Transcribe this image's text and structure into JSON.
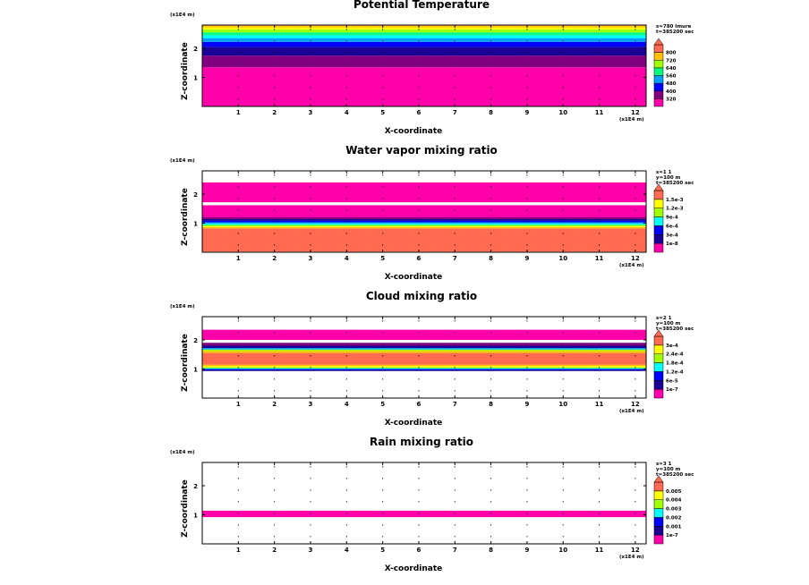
{
  "figure": {
    "xlabel": "X-coordinate",
    "ylabel": "Z-coordinate",
    "x_unit": "(x1E4 m)",
    "z_unit": "(x1E4 m)"
  },
  "colors": {
    "levels": [
      "#ff00aa",
      "#800080",
      "#1a0096",
      "#0000ff",
      "#00a0ff",
      "#00ffff",
      "#00ff80",
      "#a0ff00",
      "#ffff00",
      "#ffc000",
      "#ff6a50",
      "#ffffff"
    ]
  },
  "chart_data": [
    {
      "type": "heatmap",
      "title": "Potential Temperature",
      "info": [
        "s=780 Imure",
        "t=385200 sec"
      ],
      "xlim": [
        0,
        12.3
      ],
      "ylim": [
        0,
        2.8
      ],
      "xticks": [
        "1",
        "2",
        "3",
        "4",
        "5",
        "6",
        "7",
        "8",
        "9",
        "10",
        "11",
        "12"
      ],
      "yticks": [
        "1",
        "2"
      ],
      "colorbar_labels": [
        "320",
        "400",
        "480",
        "560",
        "640",
        "720",
        "800"
      ],
      "bands": [
        {
          "z0": 0.0,
          "z1": 1.35,
          "color": "#ff00aa"
        },
        {
          "z0": 1.35,
          "z1": 1.75,
          "color": "#800080"
        },
        {
          "z0": 1.75,
          "z1": 2.05,
          "color": "#1a0096"
        },
        {
          "z0": 2.05,
          "z1": 2.22,
          "color": "#0000ff"
        },
        {
          "z0": 2.22,
          "z1": 2.35,
          "color": "#00a0ff"
        },
        {
          "z0": 2.35,
          "z1": 2.45,
          "color": "#00ffff"
        },
        {
          "z0": 2.45,
          "z1": 2.55,
          "color": "#00ff80"
        },
        {
          "z0": 2.55,
          "z1": 2.65,
          "color": "#a0ff00"
        },
        {
          "z0": 2.65,
          "z1": 2.72,
          "color": "#ffff00"
        },
        {
          "z0": 2.72,
          "z1": 2.78,
          "color": "#ffc000"
        },
        {
          "z0": 2.78,
          "z1": 2.8,
          "color": "#ff6a50"
        }
      ]
    },
    {
      "type": "heatmap",
      "title": "Water vapor mixing ratio",
      "info": [
        "s=1 1",
        "y=100 m",
        "t=385200 sec"
      ],
      "xlim": [
        0,
        12.3
      ],
      "ylim": [
        0,
        2.8
      ],
      "xticks": [
        "1",
        "2",
        "3",
        "4",
        "5",
        "6",
        "7",
        "8",
        "9",
        "10",
        "11",
        "12"
      ],
      "yticks": [
        "1",
        "2"
      ],
      "colorbar_labels": [
        "1e-8",
        "3e-4",
        "6e-4",
        "9e-4",
        "1.2e-3",
        "1.5e-3"
      ],
      "bands": [
        {
          "z0": 0.0,
          "z1": 0.02,
          "color": "#ffffff"
        },
        {
          "z0": 0.02,
          "z1": 0.82,
          "color": "#ff6a50"
        },
        {
          "z0": 0.82,
          "z1": 0.87,
          "color": "#ffc000"
        },
        {
          "z0": 0.87,
          "z1": 0.9,
          "color": "#ffff00"
        },
        {
          "z0": 0.9,
          "z1": 0.93,
          "color": "#a0ff00"
        },
        {
          "z0": 0.93,
          "z1": 0.96,
          "color": "#00ff80"
        },
        {
          "z0": 0.96,
          "z1": 0.99,
          "color": "#00ffff"
        },
        {
          "z0": 0.99,
          "z1": 1.03,
          "color": "#00a0ff"
        },
        {
          "z0": 1.03,
          "z1": 1.08,
          "color": "#0000ff"
        },
        {
          "z0": 1.08,
          "z1": 1.14,
          "color": "#1a0096"
        },
        {
          "z0": 1.14,
          "z1": 1.2,
          "color": "#800080"
        },
        {
          "z0": 1.2,
          "z1": 1.62,
          "color": "#ff00aa"
        },
        {
          "z0": 1.62,
          "z1": 1.72,
          "color": "#ffffff"
        },
        {
          "z0": 1.72,
          "z1": 2.4,
          "color": "#ff00aa"
        }
      ]
    },
    {
      "type": "heatmap",
      "title": "Cloud mixing ratio",
      "info": [
        "s=2 1",
        "y=100 m",
        "t=385200 sec"
      ],
      "xlim": [
        0,
        12.3
      ],
      "ylim": [
        0,
        2.8
      ],
      "xticks": [
        "1",
        "2",
        "3",
        "4",
        "5",
        "6",
        "7",
        "8",
        "9",
        "10",
        "11",
        "12"
      ],
      "yticks": [
        "1",
        "2"
      ],
      "colorbar_labels": [
        "1e-7",
        "6e-5",
        "1.2e-4",
        "1.8e-4",
        "2.4e-4",
        "3e-4"
      ],
      "bands": [
        {
          "z0": 0.93,
          "z1": 0.97,
          "color": "#1a0096"
        },
        {
          "z0": 0.97,
          "z1": 1.0,
          "color": "#0000ff"
        },
        {
          "z0": 1.0,
          "z1": 1.03,
          "color": "#00ffff"
        },
        {
          "z0": 1.03,
          "z1": 1.06,
          "color": "#a0ff00"
        },
        {
          "z0": 1.06,
          "z1": 1.1,
          "color": "#ffff00"
        },
        {
          "z0": 1.1,
          "z1": 1.15,
          "color": "#ffc000"
        },
        {
          "z0": 1.15,
          "z1": 1.55,
          "color": "#ff6a50"
        },
        {
          "z0": 1.55,
          "z1": 1.62,
          "color": "#ffc000"
        },
        {
          "z0": 1.62,
          "z1": 1.67,
          "color": "#a0ff00"
        },
        {
          "z0": 1.67,
          "z1": 1.72,
          "color": "#00a0ff"
        },
        {
          "z0": 1.72,
          "z1": 1.8,
          "color": "#1a0096"
        },
        {
          "z0": 1.8,
          "z1": 1.9,
          "color": "#800080"
        },
        {
          "z0": 2.0,
          "z1": 2.35,
          "color": "#ff00aa"
        }
      ]
    },
    {
      "type": "heatmap",
      "title": "Rain mixing ratio",
      "info": [
        "s=3 1",
        "y=100 m",
        "t=385200 sec"
      ],
      "xlim": [
        0,
        12.3
      ],
      "ylim": [
        0,
        2.8
      ],
      "xticks": [
        "1",
        "2",
        "3",
        "4",
        "5",
        "6",
        "7",
        "8",
        "9",
        "10",
        "11",
        "12"
      ],
      "yticks": [
        "1",
        "2"
      ],
      "colorbar_labels": [
        "1e-7",
        "0.001",
        "0.002",
        "0.003",
        "0.004",
        "0.005"
      ],
      "bands": [
        {
          "z0": 0.92,
          "z1": 1.14,
          "color": "#ff00aa"
        }
      ]
    }
  ]
}
